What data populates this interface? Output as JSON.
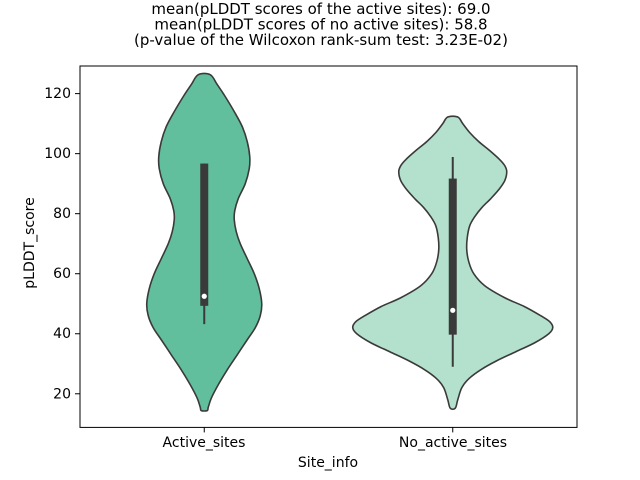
{
  "figure": {
    "background_color": "#ffffff",
    "text_color": "#000000"
  },
  "chart_data": {
    "type": "violin",
    "title_lines": [
      "mean(pLDDT scores of the active sites): 69.0",
      "mean(pLDDT scores of no active sites): 58.8",
      "(p-value of the Wilcoxon rank-sum test: 3.23E-02)"
    ],
    "stats": {
      "mean_active_sites": 69.0,
      "mean_no_active_sites": 58.8,
      "wilcoxon_rank_sum_p_value": "3.23E-02"
    },
    "xlabel": "Site_info",
    "ylabel": "pLDDT_score",
    "categories": [
      "Active_sites",
      "No_active_sites"
    ],
    "yticks": [
      20,
      40,
      60,
      80,
      100,
      120
    ],
    "ylim": [
      8.8,
      129.2
    ],
    "grid": false,
    "legend": false,
    "series": [
      {
        "name": "Active_sites",
        "fill_color": "#62bf9d",
        "edge_color": "#3a3a3a",
        "box_color": "#3a3a3a",
        "median_dot_color": "#ffffff",
        "range": [
          14.4,
          126.3
        ],
        "box": {
          "whisker_low": 43.2,
          "q1": 49.3,
          "median": 52.5,
          "q3": 96.7,
          "whisker_high": 96.7
        },
        "profile": [
          [
            126.3,
            6
          ],
          [
            123,
            13
          ],
          [
            119,
            21
          ],
          [
            114,
            30
          ],
          [
            109,
            38
          ],
          [
            104,
            43
          ],
          [
            99,
            45.5
          ],
          [
            95,
            45
          ],
          [
            90,
            41
          ],
          [
            85,
            34
          ],
          [
            81,
            30.5
          ],
          [
            78,
            30
          ],
          [
            74,
            32
          ],
          [
            70,
            36
          ],
          [
            65,
            43
          ],
          [
            60,
            50
          ],
          [
            55,
            55
          ],
          [
            50,
            57.5
          ],
          [
            46,
            56
          ],
          [
            42,
            51
          ],
          [
            38,
            43
          ],
          [
            33,
            33
          ],
          [
            28,
            23
          ],
          [
            23,
            14
          ],
          [
            18.5,
            7
          ],
          [
            15.5,
            4
          ],
          [
            14.4,
            3
          ]
        ]
      },
      {
        "name": "No_active_sites",
        "fill_color": "#b3e1cd",
        "edge_color": "#3a3a3a",
        "box_color": "#3a3a3a",
        "median_dot_color": "#ffffff",
        "range": [
          15,
          112.2
        ],
        "box": {
          "whisker_low": 29,
          "q1": 39.7,
          "median": 47.8,
          "q3": 91.7,
          "whisker_high": 98.9
        },
        "profile": [
          [
            112.2,
            5
          ],
          [
            110,
            10
          ],
          [
            107,
            17
          ],
          [
            104,
            26
          ],
          [
            101,
            37
          ],
          [
            98,
            47
          ],
          [
            96,
            52
          ],
          [
            94,
            54
          ],
          [
            91,
            52
          ],
          [
            88,
            46
          ],
          [
            85,
            38
          ],
          [
            82,
            29
          ],
          [
            79,
            22
          ],
          [
            76,
            17
          ],
          [
            72,
            14.5
          ],
          [
            68,
            14
          ],
          [
            64,
            16
          ],
          [
            60,
            21
          ],
          [
            56,
            32
          ],
          [
            52,
            52
          ],
          [
            49,
            72
          ],
          [
            46,
            88
          ],
          [
            44,
            97
          ],
          [
            42,
            100
          ],
          [
            40,
            96
          ],
          [
            37,
            82
          ],
          [
            34,
            63
          ],
          [
            31,
            44
          ],
          [
            28,
            28
          ],
          [
            25,
            16
          ],
          [
            22,
            9
          ],
          [
            18,
            5
          ],
          [
            15.2,
            2.5
          ]
        ]
      }
    ]
  }
}
